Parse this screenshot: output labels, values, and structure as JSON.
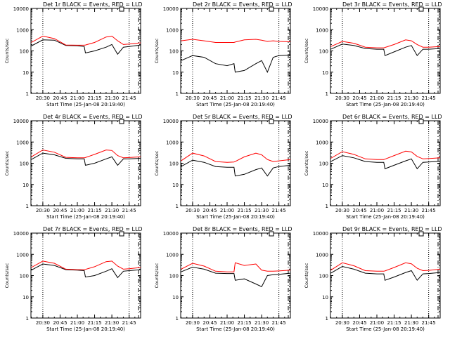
{
  "figure": {
    "colors": {
      "events": "#000000",
      "lld": "#ff0000",
      "frame": "#000000"
    }
  },
  "chart_data": [
    {
      "type": "line",
      "title": "Det 1r BLACK = Events, RED = LLD",
      "xlabel": "Start Time (25-Jan-08 20:19:40)",
      "ylabel": "Counts/sec",
      "ylim": [
        1,
        10000
      ],
      "yscale": "log",
      "xticks": [
        "20:30",
        "20:45",
        "21:00",
        "21:15",
        "21:30",
        "21:45"
      ],
      "yticks": [
        "1",
        "10",
        "100",
        "1000",
        "10000"
      ],
      "xlim": [
        "20:19:40",
        "21:55:00"
      ],
      "x": [
        "20:20",
        "20:30",
        "20:40",
        "20:50",
        "21:00",
        "21:06",
        "21:07",
        "21:15",
        "21:25",
        "21:30",
        "21:35",
        "21:40",
        "21:45",
        "21:55"
      ],
      "series": [
        {
          "name": "Events",
          "values": [
            170,
            330,
            320,
            180,
            175,
            160,
            80,
            100,
            150,
            200,
            70,
            150,
            160,
            190
          ]
        },
        {
          "name": "LLD",
          "values": [
            250,
            500,
            380,
            190,
            185,
            185,
            190,
            250,
            450,
            500,
            300,
            200,
            210,
            240
          ]
        }
      ]
    },
    {
      "type": "line",
      "title": "Det 2r BLACK = Events, RED = LLD",
      "xlabel": "Start Time (25-Jan-08 20:19:40)",
      "ylabel": "Counts/sec",
      "ylim": [
        1,
        10000
      ],
      "yscale": "log",
      "xticks": [
        "20:30",
        "20:45",
        "21:00",
        "21:15",
        "21:30",
        "21:45"
      ],
      "yticks": [
        "1",
        "10",
        "100",
        "1000",
        "10000"
      ],
      "xlim": [
        "20:19:40",
        "21:55:00"
      ],
      "x": [
        "20:20",
        "20:30",
        "20:40",
        "20:50",
        "21:00",
        "21:06",
        "21:07",
        "21:15",
        "21:25",
        "21:30",
        "21:35",
        "21:40",
        "21:45",
        "21:55"
      ],
      "series": [
        {
          "name": "Events",
          "values": [
            35,
            60,
            50,
            25,
            20,
            25,
            10,
            12,
            25,
            35,
            10,
            50,
            60,
            65
          ]
        },
        {
          "name": "LLD",
          "values": [
            300,
            350,
            300,
            250,
            250,
            250,
            260,
            330,
            350,
            320,
            280,
            300,
            280,
            270
          ]
        }
      ]
    },
    {
      "type": "line",
      "title": "Det 3r BLACK = Events, RED = LLD",
      "xlabel": "Start Time (25-Jan-08 20:19:40)",
      "ylabel": "Counts/sec",
      "ylim": [
        1,
        10000
      ],
      "yscale": "log",
      "xticks": [
        "20:30",
        "20:45",
        "21:00",
        "21:15",
        "21:30",
        "21:45"
      ],
      "yticks": [
        "1",
        "10",
        "100",
        "1000",
        "10000"
      ],
      "xlim": [
        "20:19:40",
        "21:55:00"
      ],
      "x": [
        "20:20",
        "20:30",
        "20:40",
        "20:50",
        "21:00",
        "21:06",
        "21:07",
        "21:15",
        "21:25",
        "21:30",
        "21:35",
        "21:40",
        "21:45",
        "21:55"
      ],
      "series": [
        {
          "name": "Events",
          "values": [
            120,
            210,
            180,
            130,
            120,
            120,
            60,
            90,
            150,
            180,
            60,
            120,
            120,
            130
          ]
        },
        {
          "name": "LLD",
          "values": [
            160,
            280,
            230,
            150,
            140,
            140,
            145,
            200,
            330,
            300,
            200,
            150,
            150,
            160
          ]
        }
      ]
    },
    {
      "type": "line",
      "title": "Det 4r BLACK = Events, RED = LLD",
      "xlabel": "Start Time (25-Jan-08 20:19:40)",
      "ylabel": "Counts/sec",
      "ylim": [
        1,
        10000
      ],
      "yscale": "log",
      "xticks": [
        "20:30",
        "20:45",
        "21:00",
        "21:15",
        "21:30",
        "21:45"
      ],
      "yticks": [
        "1",
        "10",
        "100",
        "1000",
        "10000"
      ],
      "xlim": [
        "20:19:40",
        "21:55:00"
      ],
      "x": [
        "20:20",
        "20:30",
        "20:40",
        "20:50",
        "21:00",
        "21:06",
        "21:07",
        "21:15",
        "21:25",
        "21:30",
        "21:35",
        "21:40",
        "21:45",
        "21:55"
      ],
      "series": [
        {
          "name": "Events",
          "values": [
            150,
            300,
            250,
            170,
            160,
            160,
            80,
            100,
            160,
            200,
            80,
            160,
            160,
            170
          ]
        },
        {
          "name": "LLD",
          "values": [
            200,
            420,
            330,
            190,
            180,
            180,
            185,
            260,
            420,
            400,
            230,
            180,
            185,
            200
          ]
        }
      ]
    },
    {
      "type": "line",
      "title": "Det 5r BLACK = Events, RED = LLD",
      "xlabel": "Start Time (25-Jan-08 20:19:40)",
      "ylabel": "Counts/sec",
      "ylim": [
        1,
        10000
      ],
      "yscale": "log",
      "xticks": [
        "20:30",
        "20:45",
        "21:00",
        "21:15",
        "21:30",
        "21:45"
      ],
      "yticks": [
        "1",
        "10",
        "100",
        "1000",
        "10000"
      ],
      "xlim": [
        "20:19:40",
        "21:55:00"
      ],
      "x": [
        "20:20",
        "20:30",
        "20:40",
        "20:50",
        "21:00",
        "21:06",
        "21:07",
        "21:15",
        "21:25",
        "21:30",
        "21:35",
        "21:40",
        "21:45",
        "21:55"
      ],
      "series": [
        {
          "name": "Events",
          "values": [
            70,
            140,
            110,
            70,
            65,
            65,
            25,
            30,
            50,
            60,
            25,
            60,
            70,
            80
          ]
        },
        {
          "name": "LLD",
          "values": [
            130,
            300,
            220,
            120,
            110,
            115,
            120,
            200,
            300,
            250,
            150,
            120,
            130,
            150
          ]
        }
      ]
    },
    {
      "type": "line",
      "title": "Det 6r BLACK = Events, RED = LLD",
      "xlabel": "Start Time (25-Jan-08 20:19:40)",
      "ylabel": "Counts/sec",
      "ylim": [
        1,
        10000
      ],
      "yscale": "log",
      "xticks": [
        "20:30",
        "20:45",
        "21:00",
        "21:15",
        "21:30",
        "21:45"
      ],
      "yticks": [
        "1",
        "10",
        "100",
        "1000",
        "10000"
      ],
      "xlim": [
        "20:19:40",
        "21:55:00"
      ],
      "x": [
        "20:20",
        "20:30",
        "20:40",
        "20:50",
        "21:00",
        "21:06",
        "21:07",
        "21:15",
        "21:25",
        "21:30",
        "21:35",
        "21:40",
        "21:45",
        "21:55"
      ],
      "series": [
        {
          "name": "Events",
          "values": [
            120,
            230,
            180,
            120,
            110,
            110,
            55,
            80,
            130,
            160,
            55,
            110,
            115,
            125
          ]
        },
        {
          "name": "LLD",
          "values": [
            170,
            350,
            260,
            160,
            150,
            150,
            155,
            230,
            370,
            340,
            210,
            160,
            165,
            180
          ]
        }
      ]
    },
    {
      "type": "line",
      "title": "Det 7r BLACK = Events, RED = LLD",
      "xlabel": "Start Time (25-Jan-08 20:19:40)",
      "ylabel": "Counts/sec",
      "ylim": [
        1,
        10000
      ],
      "yscale": "log",
      "xticks": [
        "20:30",
        "20:45",
        "21:00",
        "21:15",
        "21:30",
        "21:45"
      ],
      "yticks": [
        "1",
        "10",
        "100",
        "1000",
        "10000"
      ],
      "xlim": [
        "20:19:40",
        "21:55:00"
      ],
      "x": [
        "20:20",
        "20:30",
        "20:40",
        "20:50",
        "21:00",
        "21:06",
        "21:07",
        "21:15",
        "21:25",
        "21:30",
        "21:35",
        "21:40",
        "21:45",
        "21:55"
      ],
      "series": [
        {
          "name": "Events",
          "values": [
            180,
            350,
            300,
            190,
            180,
            170,
            85,
            100,
            160,
            210,
            80,
            160,
            170,
            190
          ]
        },
        {
          "name": "LLD",
          "values": [
            240,
            480,
            380,
            200,
            190,
            190,
            195,
            260,
            450,
            480,
            280,
            200,
            210,
            240
          ]
        }
      ]
    },
    {
      "type": "line",
      "title": "Det 8r BLACK = Events, RED = LLD",
      "xlabel": "Start Time (25-Jan-08 20:19:40)",
      "ylabel": "Counts/sec",
      "ylim": [
        1,
        10000
      ],
      "yscale": "log",
      "xticks": [
        "20:30",
        "20:45",
        "21:00",
        "21:15",
        "21:30",
        "21:45"
      ],
      "yticks": [
        "1",
        "10",
        "100",
        "1000",
        "10000"
      ],
      "xlim": [
        "20:19:40",
        "21:55:00"
      ],
      "x": [
        "20:20",
        "20:30",
        "20:40",
        "20:50",
        "21:00",
        "21:06",
        "21:07",
        "21:15",
        "21:25",
        "21:30",
        "21:35",
        "21:40",
        "21:45",
        "21:55"
      ],
      "series": [
        {
          "name": "Events",
          "values": [
            150,
            250,
            200,
            130,
            125,
            125,
            60,
            70,
            40,
            30,
            100,
            110,
            115,
            130
          ]
        },
        {
          "name": "LLD",
          "values": [
            200,
            380,
            280,
            160,
            150,
            150,
            400,
            300,
            350,
            180,
            160,
            160,
            165,
            180
          ]
        }
      ]
    },
    {
      "type": "line",
      "title": "Det 9r BLACK = Events, RED = LLD",
      "xlabel": "Start Time (25-Jan-08 20:19:40)",
      "ylabel": "Counts/sec",
      "ylim": [
        1,
        10000
      ],
      "yscale": "log",
      "xticks": [
        "20:30",
        "20:45",
        "21:00",
        "21:15",
        "21:30",
        "21:45"
      ],
      "yticks": [
        "1",
        "10",
        "100",
        "1000",
        "10000"
      ],
      "xlim": [
        "20:19:40",
        "21:55:00"
      ],
      "x": [
        "20:20",
        "20:30",
        "20:40",
        "20:50",
        "21:00",
        "21:06",
        "21:07",
        "21:15",
        "21:25",
        "21:30",
        "21:35",
        "21:40",
        "21:45",
        "21:55"
      ],
      "series": [
        {
          "name": "Events",
          "values": [
            130,
            270,
            200,
            130,
            120,
            120,
            60,
            85,
            140,
            170,
            60,
            120,
            125,
            140
          ]
        },
        {
          "name": "LLD",
          "values": [
            180,
            400,
            290,
            170,
            160,
            160,
            165,
            240,
            400,
            360,
            220,
            170,
            175,
            200
          ]
        }
      ]
    }
  ]
}
